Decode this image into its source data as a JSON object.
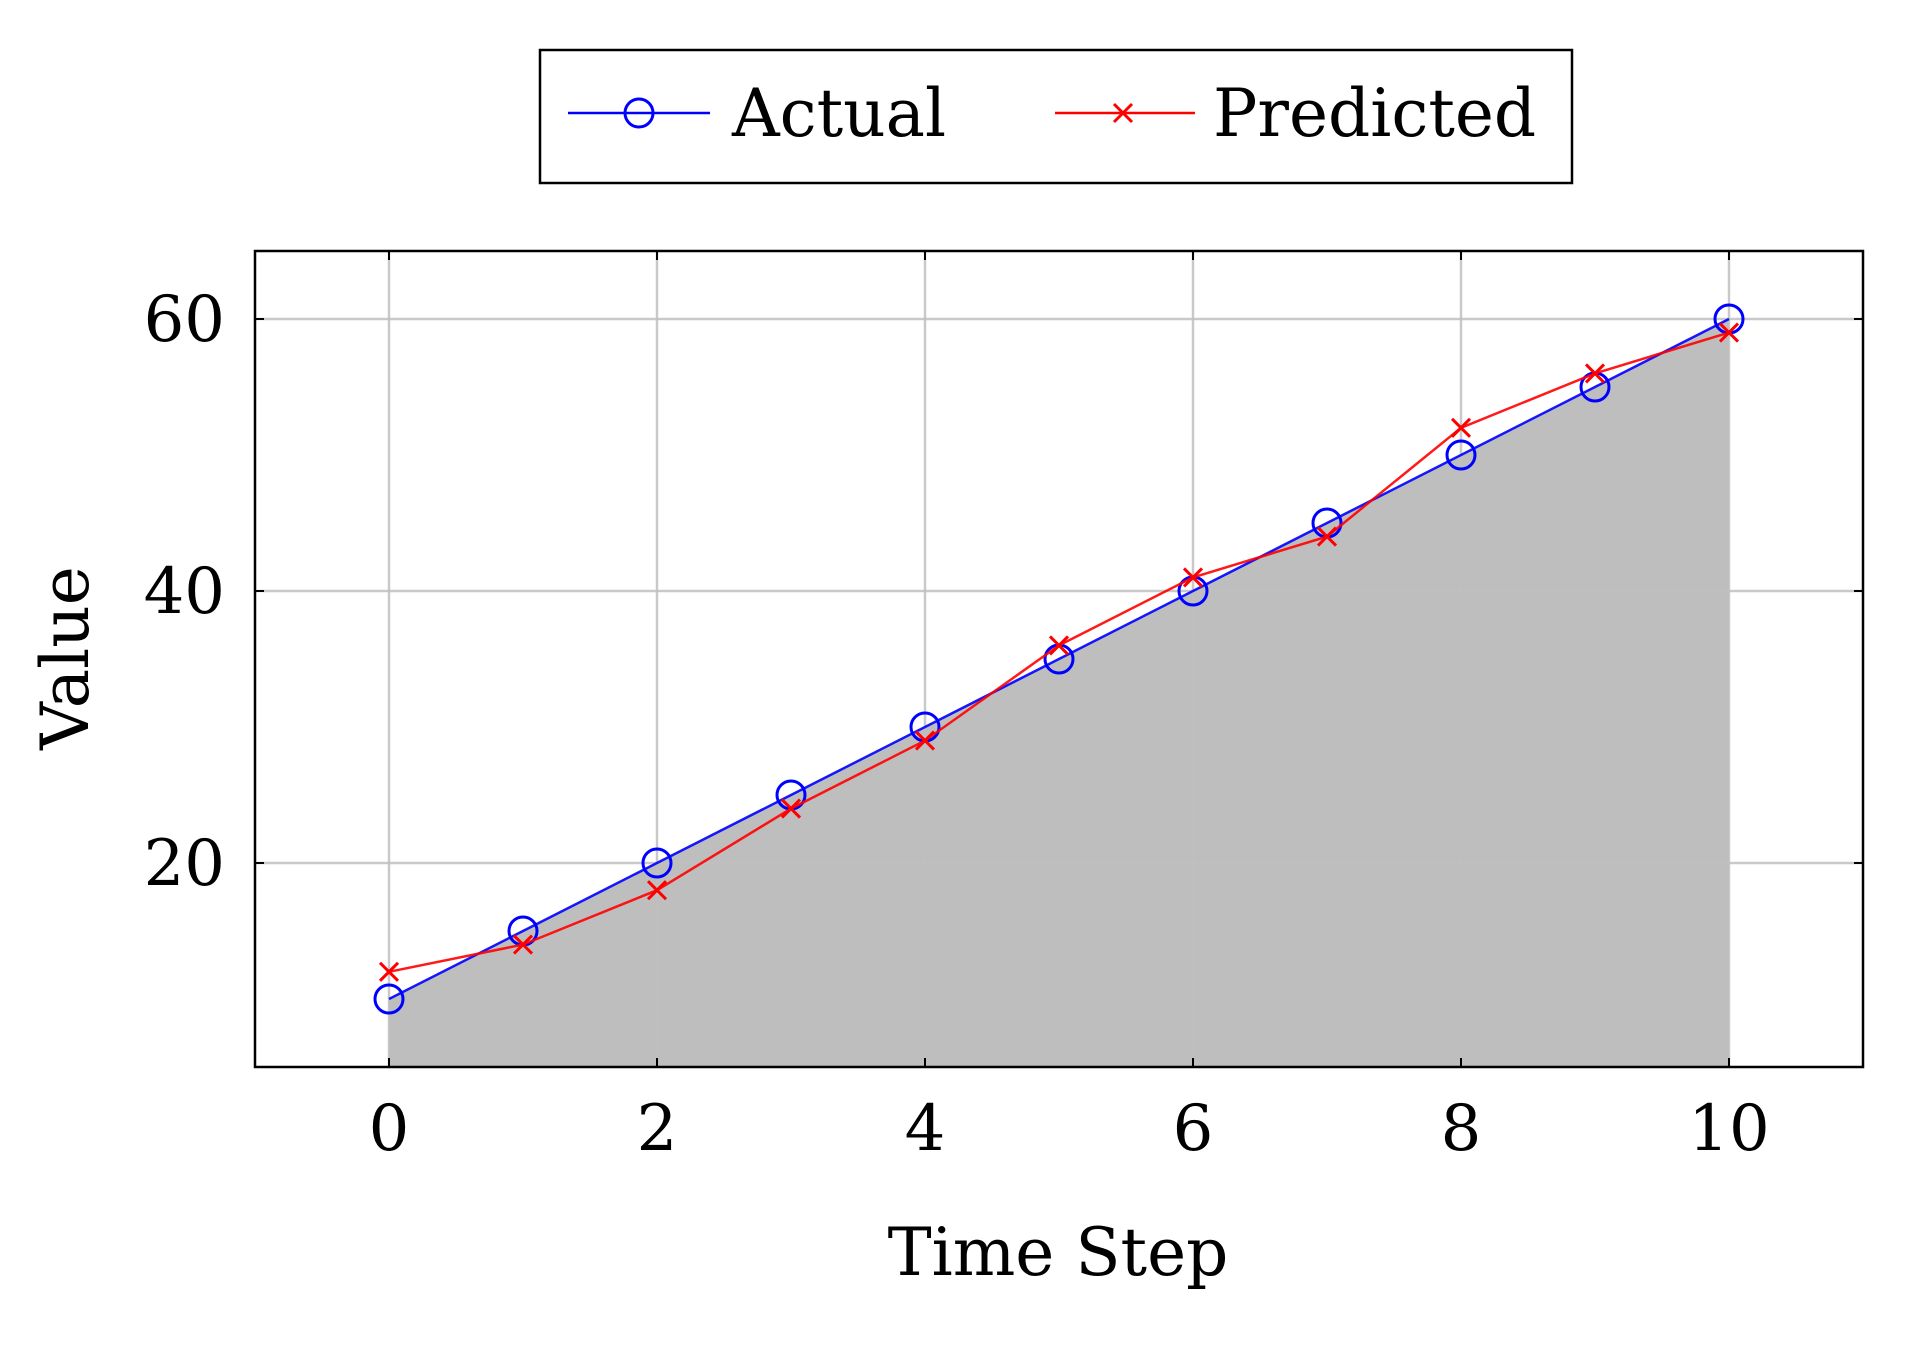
{
  "chart_data": {
    "type": "line",
    "xlabel": "Time Step",
    "ylabel": "Value",
    "xlim": [
      -1,
      11
    ],
    "ylim": [
      5,
      65
    ],
    "x_ticks": [
      0,
      2,
      4,
      6,
      8,
      10
    ],
    "y_ticks": [
      20,
      40,
      60
    ],
    "grid": true,
    "legend_position": "top-center",
    "x": [
      0,
      1,
      2,
      3,
      4,
      5,
      6,
      7,
      8,
      9,
      10
    ],
    "series": [
      {
        "name": "Actual",
        "marker": "circle",
        "color": "#0000ff",
        "values": [
          10,
          15,
          20,
          25,
          30,
          35,
          40,
          45,
          50,
          55,
          60
        ]
      },
      {
        "name": "Predicted",
        "marker": "cross",
        "color": "#ff0000",
        "values": [
          12,
          14,
          18,
          24,
          29,
          36,
          41,
          44,
          52,
          56,
          59
        ]
      }
    ],
    "fill_color": "#bebebe",
    "grid_color": "#bfbfbf"
  }
}
